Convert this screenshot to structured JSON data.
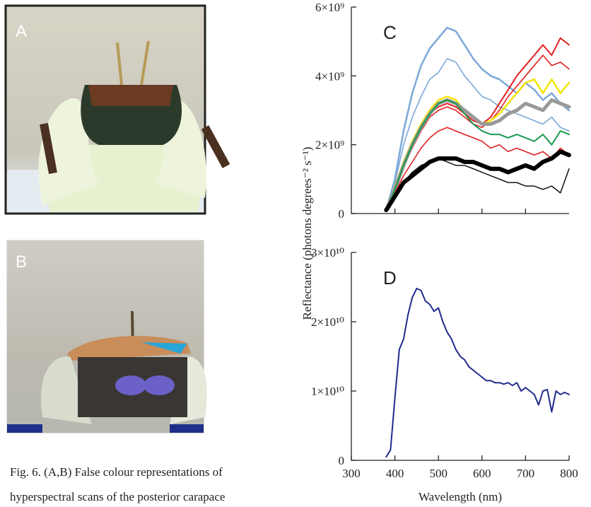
{
  "photos": [
    {
      "label": "A"
    },
    {
      "label": "B"
    }
  ],
  "ylabel": "Reflectance (photons degrees⁻² s⁻¹)",
  "caption": [
    "Fig. 6. (A,B) False colour representations of",
    "hyperspectral scans of the posterior carapace"
  ],
  "chart_data": [
    {
      "type": "line",
      "label": "C",
      "x": [
        380,
        400,
        420,
        440,
        460,
        480,
        500,
        520,
        540,
        560,
        580,
        600,
        620,
        640,
        660,
        680,
        700,
        720,
        740,
        760,
        780,
        800
      ],
      "xlim": [
        300,
        800
      ],
      "xticks": [
        400,
        500,
        600,
        700
      ],
      "ylim": [
        0,
        6000000000.0
      ],
      "yticks": [
        0,
        {
          "value": 2000000000.0,
          "label": "2×10⁹"
        },
        {
          "value": 4000000000.0,
          "label": "4×10⁹"
        },
        {
          "value": 6000000000.0,
          "label": "6×10⁹"
        }
      ],
      "series": [
        {
          "color": "#7ba7d9",
          "line_width": 2.5,
          "values": [
            100000000.0,
            1000000000.0,
            2400000000.0,
            3500000000.0,
            4300000000.0,
            4800000000.0,
            5100000000.0,
            5400000000.0,
            5300000000.0,
            4900000000.0,
            4500000000.0,
            4200000000.0,
            4000000000.0,
            3900000000.0,
            3700000000.0,
            3500000000.0,
            3800000000.0,
            3600000000.0,
            3300000000.0,
            3500000000.0,
            3200000000.0,
            3000000000.0
          ]
        },
        {
          "color": "#7ba7d9",
          "line_width": 1.6,
          "values": [
            100000000.0,
            900000000.0,
            2000000000.0,
            2800000000.0,
            3400000000.0,
            3900000000.0,
            4100000000.0,
            4500000000.0,
            4400000000.0,
            4000000000.0,
            3700000000.0,
            3400000000.0,
            3300000000.0,
            3100000000.0,
            3000000000.0,
            2900000000.0,
            2800000000.0,
            2700000000.0,
            2600000000.0,
            2800000000.0,
            2500000000.0,
            2400000000.0
          ]
        },
        {
          "color": "#e02020",
          "line_width": 2,
          "values": [
            100000000.0,
            800000000.0,
            1500000000.0,
            2000000000.0,
            2500000000.0,
            2900000000.0,
            3100000000.0,
            3200000000.0,
            3100000000.0,
            2900000000.0,
            2700000000.0,
            2600000000.0,
            2800000000.0,
            3200000000.0,
            3600000000.0,
            4000000000.0,
            4300000000.0,
            4600000000.0,
            4900000000.0,
            4600000000.0,
            5100000000.0,
            4900000000.0
          ]
        },
        {
          "color": "#e02020",
          "line_width": 1.6,
          "values": [
            100000000.0,
            800000000.0,
            1400000000.0,
            1900000000.0,
            2400000000.0,
            2800000000.0,
            3000000000.0,
            3100000000.0,
            3000000000.0,
            2800000000.0,
            2600000000.0,
            2500000000.0,
            2700000000.0,
            3000000000.0,
            3400000000.0,
            3700000000.0,
            4000000000.0,
            4300000000.0,
            4600000000.0,
            4300000000.0,
            4400000000.0,
            4200000000.0
          ]
        },
        {
          "color": "#f2e600",
          "line_width": 2.5,
          "values": [
            100000000.0,
            800000000.0,
            1500000000.0,
            2100000000.0,
            2600000000.0,
            3000000000.0,
            3300000000.0,
            3400000000.0,
            3300000000.0,
            3000000000.0,
            2800000000.0,
            2600000000.0,
            2700000000.0,
            2900000000.0,
            3200000000.0,
            3500000000.0,
            3800000000.0,
            3900000000.0,
            3500000000.0,
            3900000000.0,
            3500000000.0,
            3800000000.0
          ]
        },
        {
          "color": "#999999",
          "line_width": 5,
          "values": [
            100000000.0,
            700000000.0,
            1400000000.0,
            2000000000.0,
            2500000000.0,
            2900000000.0,
            3200000000.0,
            3300000000.0,
            3200000000.0,
            3000000000.0,
            2800000000.0,
            2600000000.0,
            2600000000.0,
            2700000000.0,
            2900000000.0,
            3000000000.0,
            3200000000.0,
            3100000000.0,
            3000000000.0,
            3300000000.0,
            3200000000.0,
            3100000000.0
          ]
        },
        {
          "color": "#1a9a50",
          "line_width": 2,
          "values": [
            100000000.0,
            700000000.0,
            1400000000.0,
            2000000000.0,
            2500000000.0,
            2900000000.0,
            3200000000.0,
            3300000000.0,
            3200000000.0,
            2900000000.0,
            2600000000.0,
            2400000000.0,
            2300000000.0,
            2300000000.0,
            2200000000.0,
            2300000000.0,
            2200000000.0,
            2100000000.0,
            2300000000.0,
            2000000000.0,
            2400000000.0,
            2300000000.0
          ]
        },
        {
          "color": "#e02020",
          "line_width": 1.6,
          "values": [
            100000000.0,
            600000000.0,
            1100000000.0,
            1500000000.0,
            1900000000.0,
            2200000000.0,
            2400000000.0,
            2500000000.0,
            2400000000.0,
            2300000000.0,
            2200000000.0,
            2100000000.0,
            1900000000.0,
            2000000000.0,
            1800000000.0,
            1900000000.0,
            1800000000.0,
            1700000000.0,
            1800000000.0,
            1600000000.0,
            1900000000.0,
            1700000000.0
          ]
        },
        {
          "color": "#000000",
          "line_width": 6,
          "values": [
            100000000.0,
            500000000.0,
            900000000.0,
            1100000000.0,
            1300000000.0,
            1500000000.0,
            1600000000.0,
            1600000000.0,
            1600000000.0,
            1500000000.0,
            1500000000.0,
            1400000000.0,
            1300000000.0,
            1300000000.0,
            1200000000.0,
            1300000000.0,
            1400000000.0,
            1300000000.0,
            1500000000.0,
            1600000000.0,
            1800000000.0,
            1700000000.0
          ]
        },
        {
          "color": "#000000",
          "line_width": 1.4,
          "values": [
            100000000.0,
            500000000.0,
            900000000.0,
            1200000000.0,
            1400000000.0,
            1500000000.0,
            1600000000.0,
            1500000000.0,
            1400000000.0,
            1400000000.0,
            1300000000.0,
            1200000000.0,
            1100000000.0,
            1000000000.0,
            900000000.0,
            900000000.0,
            800000000.0,
            800000000.0,
            700000000.0,
            800000000.0,
            600000000.0,
            1300000000.0
          ]
        }
      ]
    },
    {
      "type": "line",
      "label": "D",
      "xlabel": "Wavelength (nm)",
      "x": [
        380,
        390,
        400,
        410,
        420,
        430,
        440,
        450,
        460,
        470,
        480,
        490,
        500,
        510,
        520,
        530,
        540,
        550,
        560,
        570,
        580,
        590,
        600,
        610,
        620,
        630,
        640,
        650,
        660,
        670,
        680,
        690,
        700,
        710,
        720,
        730,
        740,
        750,
        760,
        770,
        780,
        790,
        800
      ],
      "xlim": [
        300,
        800
      ],
      "xticks": [
        300,
        400,
        500,
        600,
        700,
        800
      ],
      "ylim": [
        0,
        30000000000.0
      ],
      "yticks": [
        0,
        {
          "value": 10000000000.0,
          "label": "1×10¹⁰"
        },
        {
          "value": 20000000000.0,
          "label": "2×10¹⁰"
        },
        {
          "value": 30000000000.0,
          "label": "3×10¹⁰"
        }
      ],
      "series": [
        {
          "color": "#1f2a8c",
          "line_width": 2,
          "values": [
            500000000.0,
            1500000000.0,
            9000000000.0,
            16000000000.0,
            17500000000.0,
            21000000000.0,
            23500000000.0,
            24800000000.0,
            24500000000.0,
            23000000000.0,
            22500000000.0,
            21500000000.0,
            22000000000.0,
            20000000000.0,
            18500000000.0,
            17500000000.0,
            16000000000.0,
            15000000000.0,
            14500000000.0,
            13500000000.0,
            13000000000.0,
            12500000000.0,
            12000000000.0,
            11500000000.0,
            11500000000.0,
            11200000000.0,
            11200000000.0,
            11000000000.0,
            11200000000.0,
            10800000000.0,
            11200000000.0,
            10000000000.0,
            10500000000.0,
            10000000000.0,
            9500000000.0,
            8000000000.0,
            10000000000.0,
            10200000000.0,
            7000000000.0,
            10000000000.0,
            9500000000.0,
            9800000000.0,
            9500000000.0
          ]
        }
      ]
    }
  ]
}
